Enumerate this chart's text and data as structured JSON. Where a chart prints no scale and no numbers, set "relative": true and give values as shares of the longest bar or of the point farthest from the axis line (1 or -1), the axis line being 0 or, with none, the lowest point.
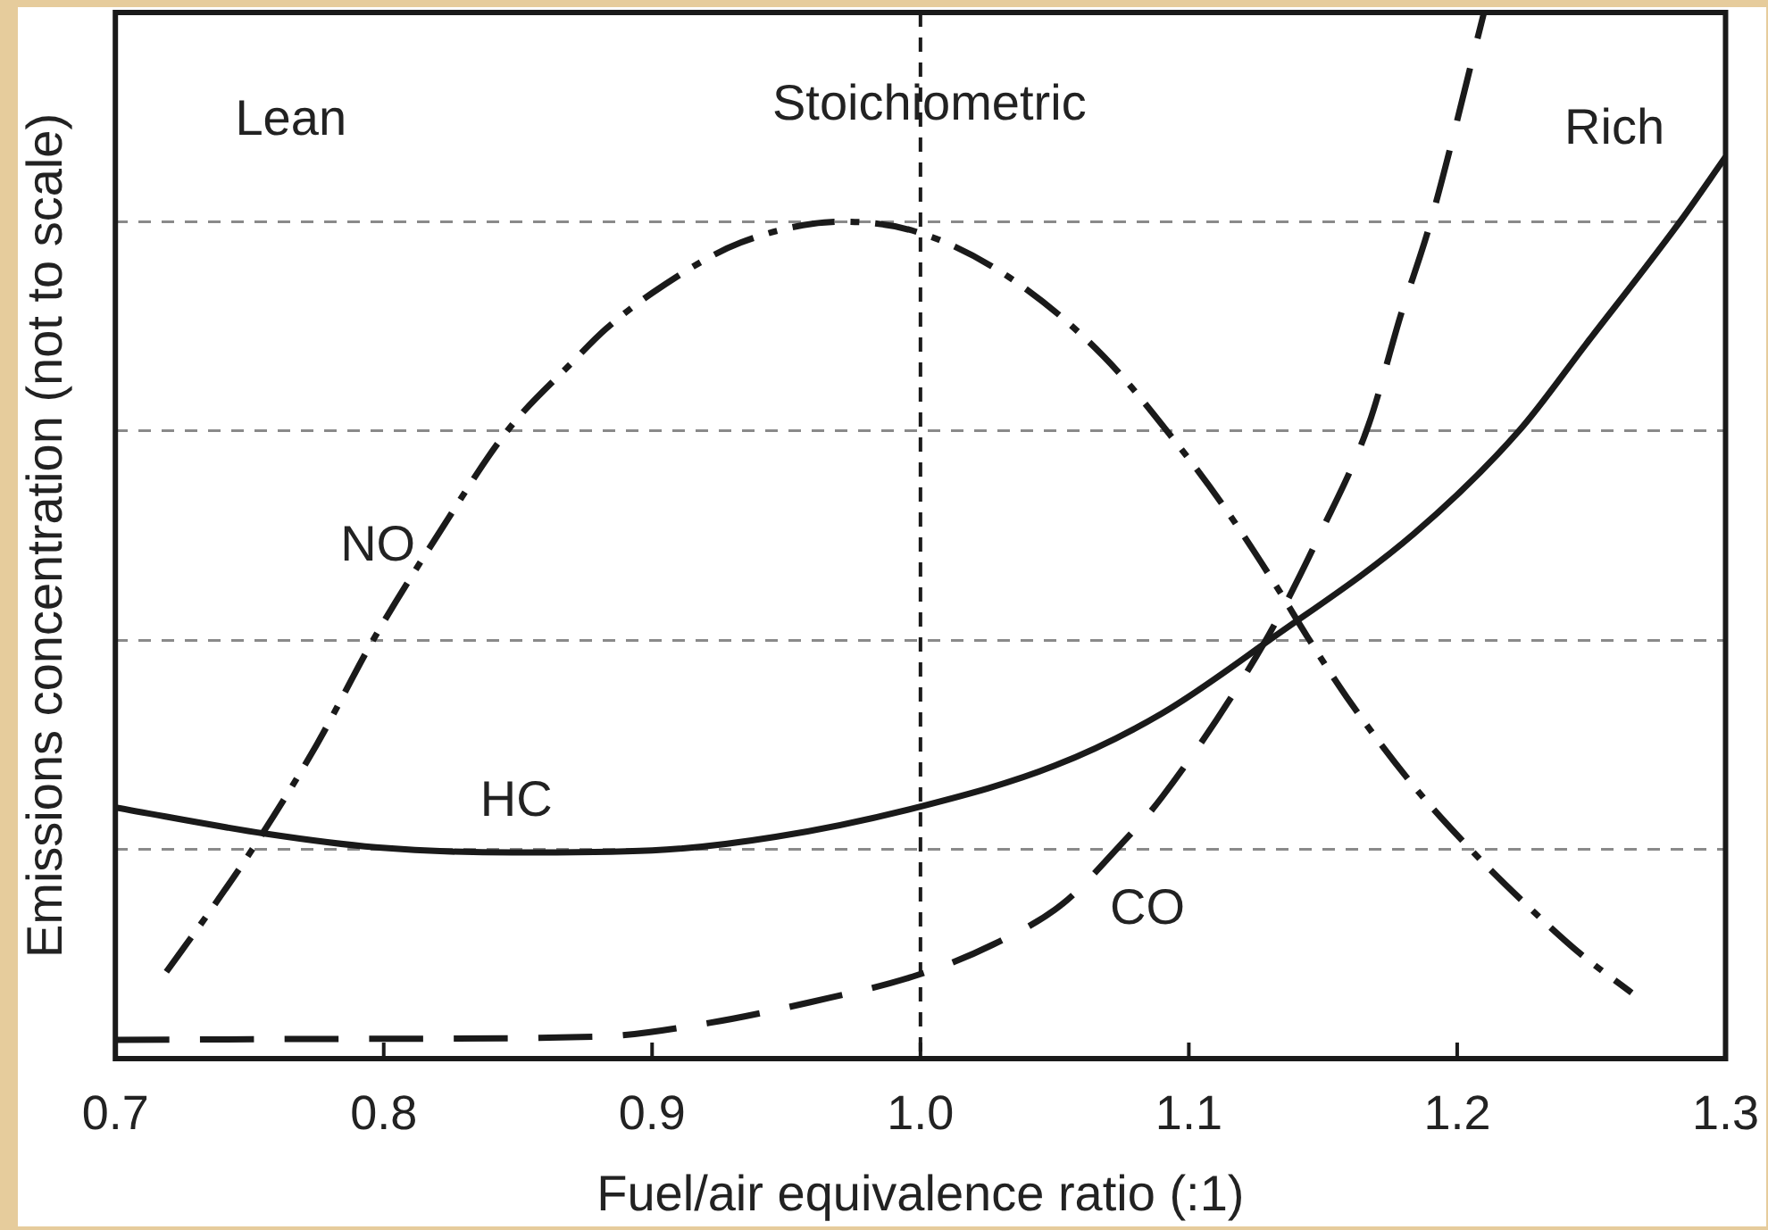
{
  "chart_data": {
    "type": "line",
    "relative": true,
    "xlabel": "Fuel/air equivalence ratio (:1)",
    "ylabel": "Emissions concentration (not to scale)",
    "xlim": [
      0.7,
      1.3
    ],
    "xticks": [
      0.7,
      0.8,
      0.9,
      {
        "value": 1,
        "label": "1.0"
      },
      1.1,
      1.2,
      1.3
    ],
    "grid": "y",
    "marker": "none",
    "annotations": [
      "Lean",
      "Rich"
    ],
    "ref_lines": [
      {
        "axis": "x",
        "value": 1,
        "label": "Stoichiometric",
        "line_style": "dashed",
        "color": "#1a1a1a"
      }
    ],
    "series": [
      {
        "name": "NO",
        "color": "#1a1a1a",
        "line_style": "dashdot",
        "x": [
          0.719,
          0.735,
          0.751,
          0.775,
          0.796,
          0.82,
          0.846,
          0.87,
          0.883,
          0.903,
          0.933,
          0.971,
          0.999,
          1.033,
          1.068,
          1.094,
          1.113,
          1.133,
          1.144,
          1.159,
          1.184,
          1.205,
          1.225,
          1.246,
          1.265
        ],
        "values": [
          0.083,
          0.14,
          0.2,
          0.3,
          0.4,
          0.5,
          0.6,
          0.665,
          0.698,
          0.737,
          0.78,
          0.8,
          0.79,
          0.747,
          0.672,
          0.593,
          0.528,
          0.45,
          0.404,
          0.345,
          0.26,
          0.2,
          0.149,
          0.1,
          0.063
        ]
      },
      {
        "name": "HC",
        "color": "#1a1a1a",
        "line_style": "solid",
        "x": [
          0.7,
          0.756,
          0.797,
          0.848,
          0.9,
          0.946,
          1.0,
          1.05,
          1.09,
          1.13,
          1.184,
          1.223,
          1.248,
          1.283,
          1.3
        ],
        "values": [
          0.24,
          0.215,
          0.202,
          0.197,
          0.199,
          0.212,
          0.241,
          0.28,
          0.33,
          0.4,
          0.502,
          0.6,
          0.683,
          0.8,
          0.862
        ]
      },
      {
        "name": "CO",
        "color": "#1a1a1a",
        "line_style": "dashed",
        "x": [
          0.7,
          0.8,
          0.88,
          0.921,
          0.959,
          0.999,
          1.027,
          1.053,
          1.073,
          1.09,
          1.128,
          1.149,
          1.167,
          1.179,
          1.19,
          1.21
        ],
        "values": [
          0.018,
          0.019,
          0.021,
          0.034,
          0.054,
          0.08,
          0.109,
          0.148,
          0.2,
          0.25,
          0.397,
          0.502,
          0.606,
          0.711,
          0.799,
          1.0
        ]
      }
    ]
  }
}
